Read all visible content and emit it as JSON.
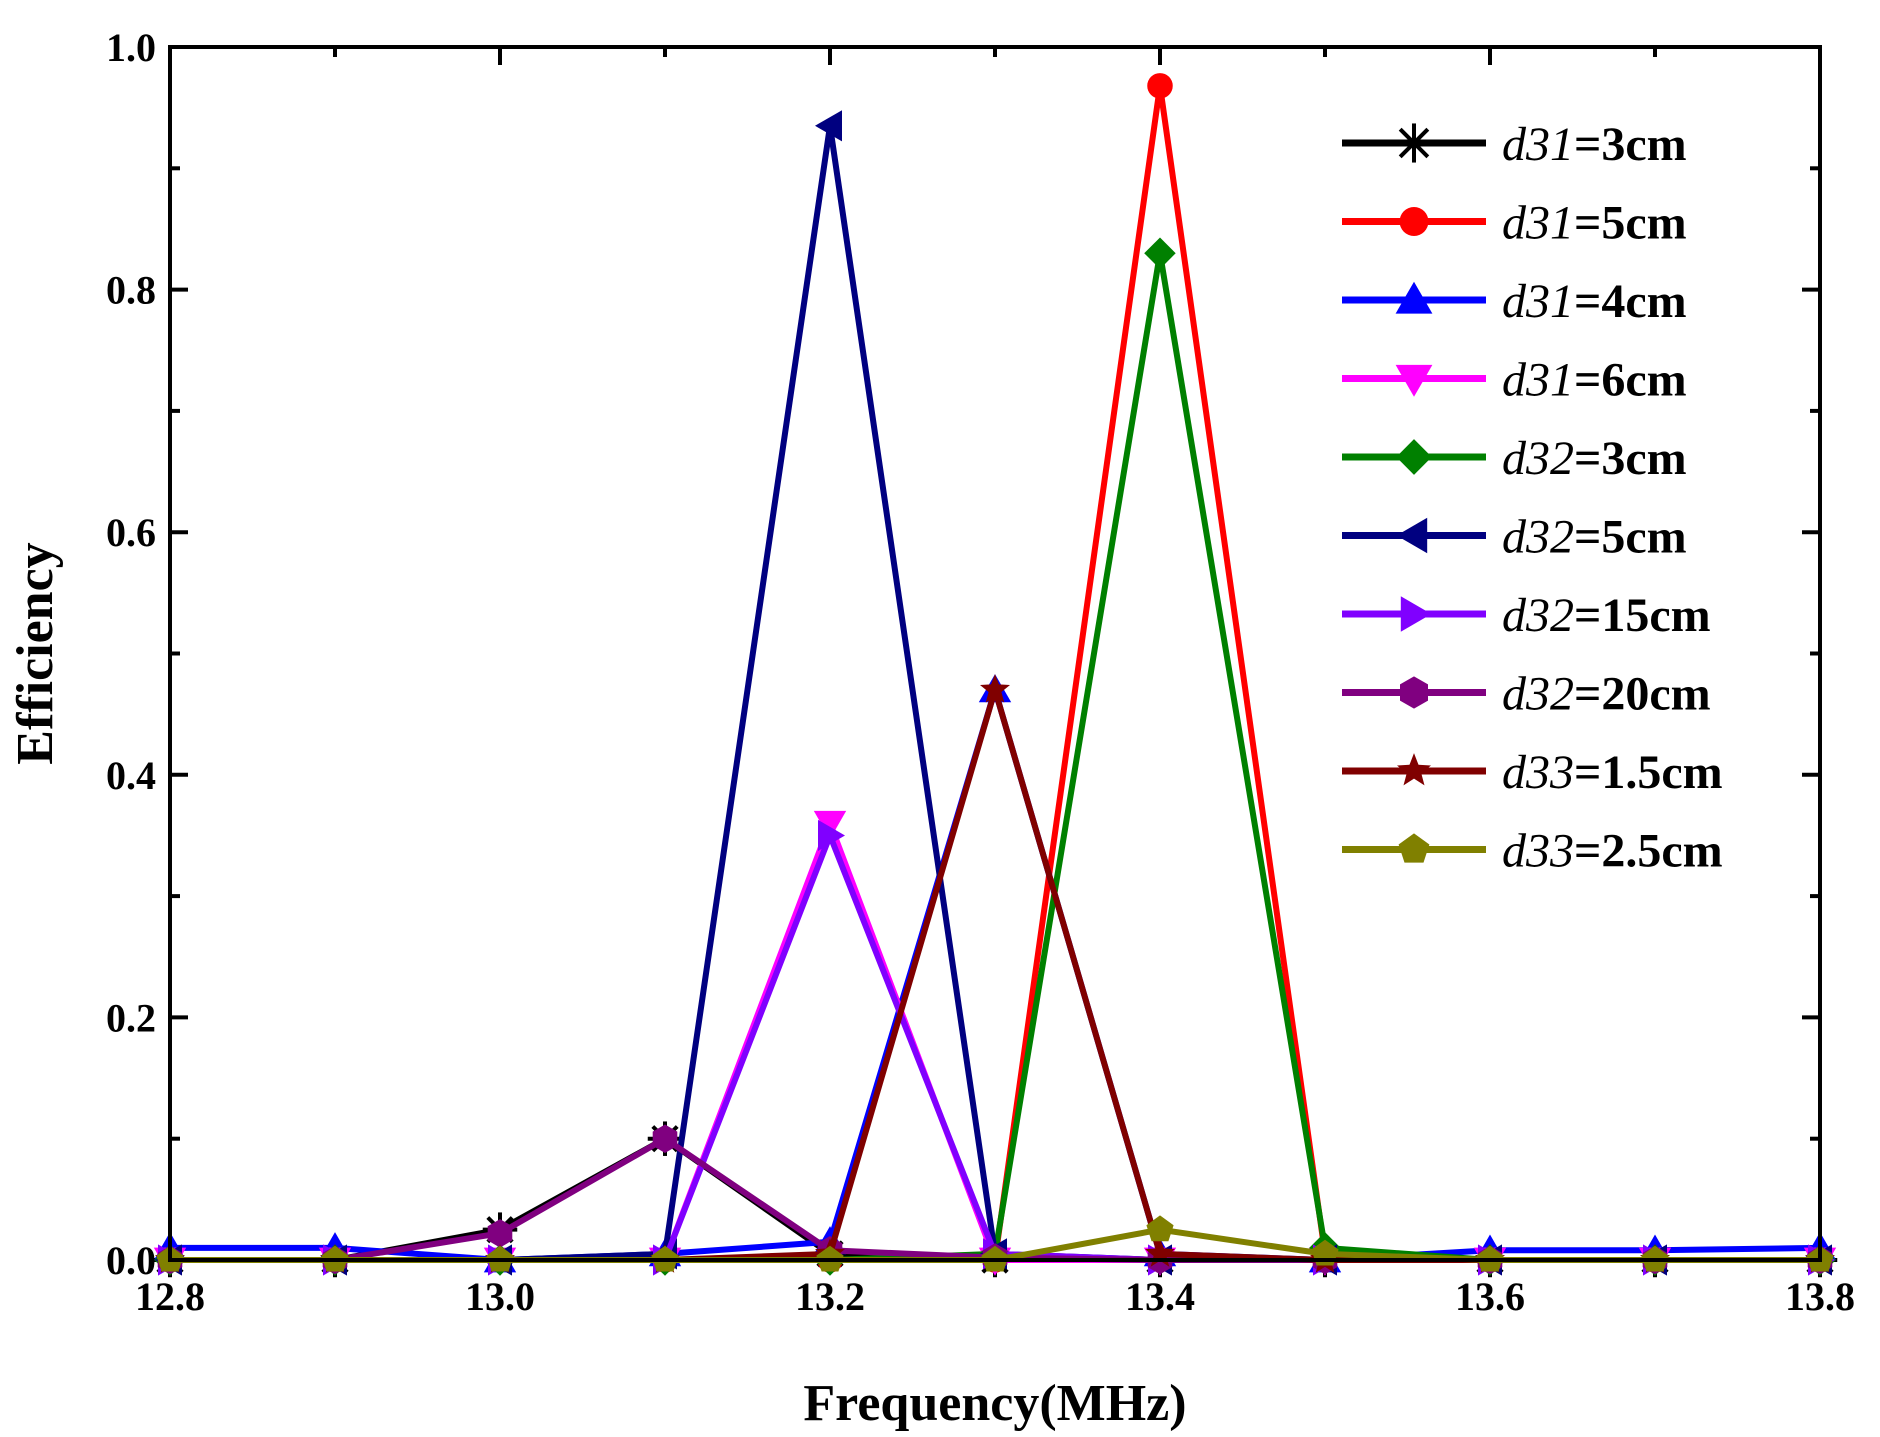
{
  "chart_data": {
    "type": "line",
    "title": "",
    "xlabel": "Frequency(MHz)",
    "ylabel": "Efficiency",
    "xlim": [
      12.8,
      13.8
    ],
    "ylim": [
      0.0,
      1.0
    ],
    "x": [
      12.8,
      12.9,
      13.0,
      13.1,
      13.2,
      13.3,
      13.4,
      13.5,
      13.6,
      13.7,
      13.8
    ],
    "xticks": [
      "12.8",
      "13.0",
      "13.2",
      "13.4",
      "13.6",
      "13.8"
    ],
    "yticks": [
      "0.0",
      "0.2",
      "0.4",
      "0.6",
      "0.8",
      "1.0"
    ],
    "legend_position": "top-right",
    "series": [
      {
        "sym": "d31",
        "suffix": "=3cm",
        "color": "#000000",
        "marker": "asterisk",
        "values": [
          0.0,
          0.0,
          0.025,
          0.1,
          0.005,
          0.0,
          0.0,
          0.0,
          0.0,
          0.0,
          0.0
        ]
      },
      {
        "sym": "d31",
        "suffix": "=5cm",
        "color": "#ff0000",
        "marker": "circle",
        "values": [
          0.0,
          0.0,
          0.0,
          0.0,
          0.0,
          0.0,
          0.968,
          0.005,
          0.0,
          0.0,
          0.0
        ]
      },
      {
        "sym": "d31",
        "suffix": "=4cm",
        "color": "#0000ff",
        "marker": "triangle-up",
        "values": [
          0.01,
          0.01,
          0.0,
          0.005,
          0.015,
          0.47,
          0.005,
          0.0,
          0.008,
          0.008,
          0.01
        ]
      },
      {
        "sym": "d31",
        "suffix": "=6cm",
        "color": "#ff00ff",
        "marker": "triangle-down",
        "values": [
          0.0,
          0.0,
          0.0,
          0.0,
          0.36,
          0.0,
          0.0,
          0.0,
          0.0,
          0.0,
          0.0
        ]
      },
      {
        "sym": "d32",
        "suffix": "=3cm",
        "color": "#008000",
        "marker": "diamond",
        "values": [
          0.0,
          0.0,
          0.0,
          0.0,
          0.0,
          0.005,
          0.83,
          0.01,
          0.0,
          0.0,
          0.0
        ]
      },
      {
        "sym": "d32",
        "suffix": "=5cm",
        "color": "#000080",
        "marker": "triangle-left",
        "values": [
          0.0,
          0.0,
          0.0,
          0.005,
          0.935,
          0.005,
          0.0,
          0.0,
          0.0,
          0.0,
          0.0
        ]
      },
      {
        "sym": "d32",
        "suffix": "=15cm",
        "color": "#8000ff",
        "marker": "triangle-right",
        "values": [
          0.0,
          0.0,
          0.0,
          0.0,
          0.35,
          0.005,
          0.0,
          0.0,
          0.0,
          0.0,
          0.0
        ]
      },
      {
        "sym": "d32",
        "suffix": "=20cm",
        "color": "#800080",
        "marker": "hexagon",
        "values": [
          0.0,
          0.0,
          0.022,
          0.1,
          0.008,
          0.002,
          0.0,
          0.0,
          0.0,
          0.0,
          0.0
        ]
      },
      {
        "sym": "d33",
        "suffix": "=1.5cm",
        "color": "#800000",
        "marker": "star",
        "values": [
          0.0,
          0.0,
          0.0,
          0.0,
          0.005,
          0.47,
          0.005,
          0.0,
          0.0,
          0.0,
          0.0
        ]
      },
      {
        "sym": "d33",
        "suffix": "=2.5cm",
        "color": "#808000",
        "marker": "pentagon",
        "values": [
          0.0,
          0.0,
          0.0,
          0.0,
          0.0,
          0.0,
          0.025,
          0.005,
          0.0,
          0.0,
          0.0
        ]
      }
    ]
  }
}
